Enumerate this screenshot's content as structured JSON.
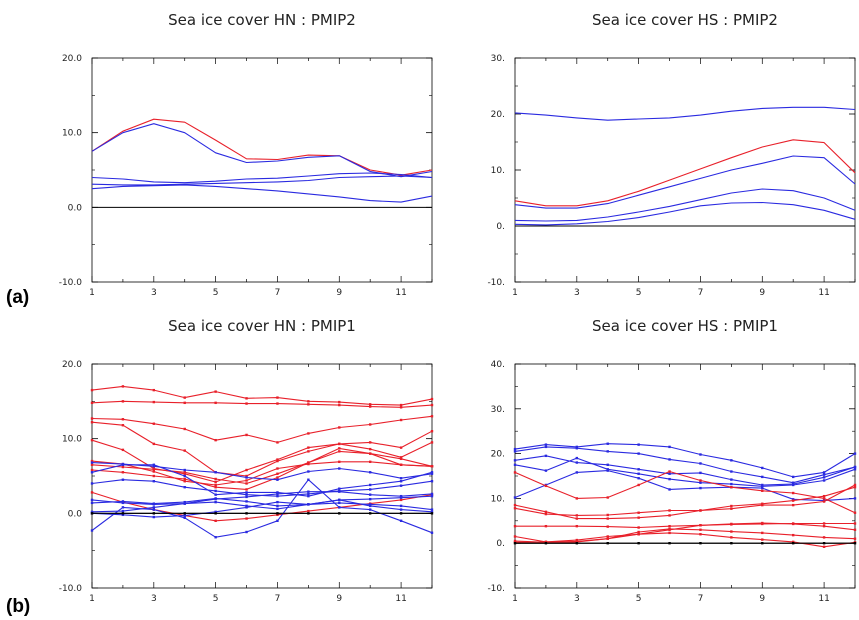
{
  "panel_labels": [
    "(a)",
    "(b)"
  ],
  "colors": {
    "red": "#e8202a",
    "blue": "#2a2ae0",
    "axis": "#000000"
  },
  "chart_data": [
    {
      "type": "line",
      "title": "Sea ice cover HN : PMIP2",
      "x": [
        1,
        2,
        3,
        4,
        5,
        6,
        7,
        8,
        9,
        10,
        11,
        12
      ],
      "xticks": [
        "1",
        "3",
        "5",
        "7",
        "9",
        "11"
      ],
      "yticks": [
        "20.0",
        "10.0",
        "0.0",
        "-10.0"
      ],
      "ylim": [
        -10,
        20
      ],
      "zero_line": true,
      "markers": false,
      "series": [
        {
          "color": "red",
          "values": [
            7.5,
            10.2,
            11.8,
            11.4,
            9.0,
            6.5,
            6.4,
            7.0,
            6.9,
            5.0,
            4.3,
            5.0
          ]
        },
        {
          "color": "blue",
          "values": [
            7.5,
            10.0,
            11.2,
            10.0,
            7.3,
            6.0,
            6.2,
            6.7,
            6.9,
            4.8,
            4.1,
            4.8
          ]
        },
        {
          "color": "blue",
          "values": [
            4.0,
            3.8,
            3.4,
            3.3,
            3.5,
            3.8,
            3.9,
            4.2,
            4.5,
            4.6,
            4.4,
            4.0
          ]
        },
        {
          "color": "blue",
          "values": [
            3.1,
            3.0,
            3.0,
            3.1,
            3.2,
            3.3,
            3.4,
            3.6,
            4.0,
            4.1,
            4.2,
            4.0
          ]
        },
        {
          "color": "blue",
          "values": [
            2.5,
            2.8,
            2.9,
            3.0,
            2.8,
            2.5,
            2.2,
            1.8,
            1.4,
            0.9,
            0.7,
            1.5
          ]
        }
      ]
    },
    {
      "type": "line",
      "title": "Sea ice cover HS : PMIP2",
      "x": [
        1,
        2,
        3,
        4,
        5,
        6,
        7,
        8,
        9,
        10,
        11,
        12
      ],
      "xticks": [
        "1",
        "3",
        "5",
        "7",
        "9",
        "11"
      ],
      "yticks": [
        "30.",
        "20.",
        "10.",
        "0.",
        "-10."
      ],
      "ylim": [
        -10,
        30
      ],
      "zero_line": true,
      "markers": false,
      "series": [
        {
          "color": "blue",
          "values": [
            20.2,
            19.8,
            19.3,
            18.9,
            19.1,
            19.3,
            19.8,
            20.5,
            21.0,
            21.2,
            21.2,
            20.8
          ]
        },
        {
          "color": "red",
          "values": [
            4.5,
            3.6,
            3.6,
            4.5,
            6.2,
            8.2,
            10.2,
            12.2,
            14.1,
            15.4,
            14.9,
            9.5
          ]
        },
        {
          "color": "blue",
          "values": [
            3.8,
            3.2,
            3.2,
            4.0,
            5.5,
            7.0,
            8.5,
            10.0,
            11.2,
            12.5,
            12.2,
            7.5
          ]
        },
        {
          "color": "blue",
          "values": [
            1.0,
            0.9,
            1.0,
            1.6,
            2.5,
            3.5,
            4.7,
            5.9,
            6.6,
            6.3,
            5.0,
            2.8
          ]
        },
        {
          "color": "blue",
          "values": [
            0.3,
            0.2,
            0.4,
            0.8,
            1.5,
            2.5,
            3.6,
            4.1,
            4.2,
            3.8,
            2.8,
            1.2
          ]
        }
      ]
    },
    {
      "type": "line",
      "title": "Sea ice cover HN : PMIP1",
      "x": [
        1,
        2,
        3,
        4,
        5,
        6,
        7,
        8,
        9,
        10,
        11,
        12
      ],
      "xticks": [
        "1",
        "3",
        "5",
        "7",
        "9",
        "11"
      ],
      "yticks": [
        "20.0",
        "10.0",
        "0.0",
        "-10.0"
      ],
      "ylim": [
        -10,
        20
      ],
      "zero_line": true,
      "markers": true,
      "series": [
        {
          "color": "red",
          "values": [
            16.5,
            17.0,
            16.5,
            15.5,
            16.3,
            15.4,
            15.5,
            15.0,
            14.9,
            14.6,
            14.5,
            15.3
          ]
        },
        {
          "color": "red",
          "values": [
            14.8,
            15.0,
            14.9,
            14.8,
            14.8,
            14.7,
            14.7,
            14.6,
            14.5,
            14.3,
            14.2,
            14.5
          ]
        },
        {
          "color": "red",
          "values": [
            12.7,
            12.6,
            12.0,
            11.3,
            9.8,
            10.5,
            9.5,
            10.7,
            11.5,
            11.9,
            12.5,
            13.0
          ]
        },
        {
          "color": "red",
          "values": [
            12.2,
            11.8,
            9.3,
            8.4,
            5.5,
            5.0,
            7.0,
            8.3,
            9.3,
            9.5,
            8.8,
            11.0
          ]
        },
        {
          "color": "red",
          "values": [
            9.8,
            8.5,
            6.0,
            5.3,
            4.2,
            5.8,
            7.2,
            8.8,
            9.3,
            8.6,
            7.5,
            9.5
          ]
        },
        {
          "color": "red",
          "values": [
            7.0,
            6.6,
            5.6,
            4.3,
            3.8,
            4.4,
            6.0,
            6.6,
            6.9,
            6.9,
            6.5,
            6.3
          ]
        },
        {
          "color": "red",
          "values": [
            6.5,
            6.2,
            5.9,
            5.5,
            4.6,
            4.0,
            5.3,
            6.8,
            8.3,
            8.0,
            7.3,
            6.3
          ]
        },
        {
          "color": "red",
          "values": [
            5.8,
            5.5,
            5.0,
            4.6,
            3.5,
            3.2,
            4.8,
            6.8,
            8.7,
            8.0,
            6.5,
            6.3
          ]
        },
        {
          "color": "red",
          "values": [
            2.8,
            1.5,
            0.5,
            -0.3,
            -1.0,
            -0.7,
            -0.2,
            0.3,
            0.8,
            1.3,
            1.8,
            2.5
          ]
        },
        {
          "color": "blue",
          "values": [
            6.8,
            6.6,
            6.3,
            5.8,
            5.5,
            4.8,
            4.5,
            5.6,
            6.0,
            5.5,
            4.7,
            5.3
          ]
        },
        {
          "color": "blue",
          "values": [
            5.5,
            6.5,
            6.5,
            5.0,
            2.5,
            2.8,
            2.8,
            2.3,
            3.3,
            3.8,
            4.3,
            5.5
          ]
        },
        {
          "color": "blue",
          "values": [
            4.0,
            4.5,
            4.3,
            3.5,
            3.0,
            2.5,
            2.3,
            2.6,
            3.0,
            3.2,
            3.7,
            4.3
          ]
        },
        {
          "color": "blue",
          "values": [
            1.8,
            1.4,
            1.2,
            1.3,
            1.9,
            2.2,
            2.6,
            2.9,
            2.9,
            2.5,
            2.3,
            2.6
          ]
        },
        {
          "color": "blue",
          "values": [
            1.4,
            1.6,
            1.3,
            1.5,
            2.0,
            1.6,
            1.0,
            1.2,
            1.8,
            1.9,
            2.1,
            2.3
          ]
        },
        {
          "color": "blue",
          "values": [
            0.2,
            0.3,
            0.8,
            1.3,
            1.5,
            1.0,
            0.6,
            1.2,
            1.4,
            1.2,
            1.0,
            0.5
          ]
        },
        {
          "color": "blue",
          "values": [
            -2.3,
            0.8,
            0.5,
            -0.6,
            -3.2,
            -2.5,
            -1.0,
            4.5,
            0.8,
            0.5,
            -1.0,
            -2.6
          ]
        },
        {
          "color": "blue",
          "values": [
            0.0,
            -0.2,
            -0.5,
            -0.3,
            0.2,
            0.8,
            1.5,
            1.2,
            1.8,
            1.0,
            0.5,
            0.2
          ]
        },
        {
          "color": "axis",
          "values": [
            0,
            0,
            0,
            0,
            0,
            0,
            0,
            0,
            0,
            0,
            0,
            0
          ]
        }
      ]
    },
    {
      "type": "line",
      "title": "Sea ice cover HS : PMIP1",
      "x": [
        1,
        2,
        3,
        4,
        5,
        6,
        7,
        8,
        9,
        10,
        11,
        12
      ],
      "xticks": [
        "1",
        "3",
        "5",
        "7",
        "9",
        "11"
      ],
      "yticks": [
        "40.",
        "30.",
        "20.",
        "10.",
        "0.",
        "-10."
      ],
      "ylim": [
        -10,
        40
      ],
      "zero_line": true,
      "markers": true,
      "series": [
        {
          "color": "blue",
          "values": [
            21.0,
            22.0,
            21.5,
            22.2,
            22.0,
            21.5,
            19.8,
            18.5,
            16.8,
            14.8,
            15.8,
            20.0
          ]
        },
        {
          "color": "blue",
          "values": [
            20.5,
            21.5,
            21.2,
            20.5,
            20.0,
            18.7,
            17.8,
            16.0,
            14.8,
            13.5,
            15.3,
            17.0
          ]
        },
        {
          "color": "blue",
          "values": [
            18.5,
            19.5,
            18.0,
            17.5,
            16.5,
            15.5,
            15.7,
            14.2,
            13.0,
            13.2,
            14.7,
            17.0
          ]
        },
        {
          "color": "blue",
          "values": [
            17.5,
            16.2,
            19.0,
            16.5,
            15.5,
            14.3,
            13.5,
            13.2,
            12.7,
            13.0,
            14.0,
            16.5
          ]
        },
        {
          "color": "blue",
          "values": [
            10.2,
            13.0,
            15.8,
            16.2,
            14.5,
            12.0,
            12.3,
            12.5,
            12.3,
            9.8,
            9.5,
            10.0
          ]
        },
        {
          "color": "red",
          "values": [
            15.8,
            12.8,
            10.0,
            10.2,
            13.0,
            16.0,
            14.0,
            12.5,
            11.7,
            11.2,
            10.0,
            6.8
          ]
        },
        {
          "color": "red",
          "values": [
            7.8,
            6.5,
            6.2,
            6.3,
            6.8,
            7.3,
            7.3,
            8.3,
            8.8,
            9.5,
            10.5,
            12.5
          ]
        },
        {
          "color": "red",
          "values": [
            8.5,
            7.0,
            5.5,
            5.5,
            5.7,
            6.2,
            7.3,
            7.7,
            8.5,
            8.5,
            9.3,
            13.0
          ]
        },
        {
          "color": "red",
          "values": [
            3.8,
            3.8,
            3.8,
            3.7,
            3.5,
            3.8,
            4.0,
            4.2,
            4.3,
            4.4,
            4.4,
            4.4
          ]
        },
        {
          "color": "red",
          "values": [
            1.5,
            0.3,
            0.3,
            1.0,
            2.5,
            3.2,
            3.0,
            2.6,
            2.3,
            1.8,
            1.3,
            1.0
          ]
        },
        {
          "color": "red",
          "values": [
            0.5,
            0.2,
            0.4,
            1.0,
            2.0,
            3.0,
            4.0,
            4.3,
            4.5,
            4.3,
            3.8,
            3.0
          ]
        },
        {
          "color": "red",
          "values": [
            0.2,
            0.3,
            0.7,
            1.5,
            2.0,
            2.3,
            2.0,
            1.3,
            0.8,
            0.3,
            -0.8,
            0.2
          ]
        },
        {
          "color": "axis",
          "values": [
            0,
            0,
            0,
            0,
            0,
            0,
            0,
            0,
            0,
            0,
            0,
            0
          ]
        }
      ]
    }
  ]
}
